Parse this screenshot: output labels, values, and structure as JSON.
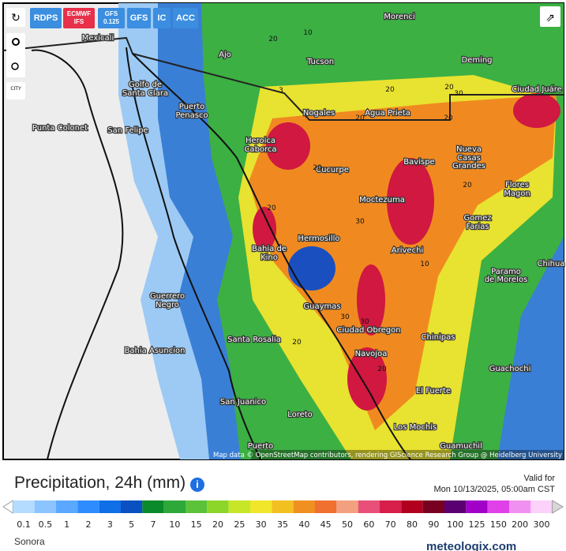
{
  "toolbar": {
    "buttons": [
      "RDPS",
      "ECMWF IFS",
      "GFS 0.125",
      "GFS",
      "IC",
      "ACC"
    ],
    "city_toggle": "CITY"
  },
  "map": {
    "places": [
      "Mexicali",
      "Tucson",
      "Morenci",
      "Ajo",
      "Deming",
      "Ciudad Juáre",
      "Golfo de",
      "Santa Clara",
      "Puerto",
      "Penasco",
      "Punta Colonet",
      "San Felipe",
      "Nogales",
      "Agua Prieta",
      "Heroica",
      "Caborca",
      "Cucurpe",
      "Bavispe",
      "Nueva",
      "Casas",
      "Grandes",
      "Flores",
      "Magon",
      "Moctezuma",
      "Gomez",
      "Farias",
      "Hermosillo",
      "Bahia de",
      "Kino",
      "Arivechi",
      "Paramo",
      "de Morelos",
      "Chihua",
      "Guerrero",
      "Negro",
      "Guaymas",
      "Santa Rosalia",
      "Ciudad Obregon",
      "Chinipas",
      "Bahia Asuncion",
      "Navojoa",
      "Guachochi",
      "El Fuerte",
      "San Juanico",
      "Loreto",
      "Los Mochis",
      "Guamuchil",
      "Puerto"
    ],
    "contour_labels": [
      "20",
      "10",
      "3",
      "20",
      "20",
      "30",
      "20",
      "20",
      "20",
      "20",
      "30",
      "20",
      "10",
      "30",
      "30",
      "20",
      "20"
    ],
    "attribution": "Map data © OpenStreetMap contributors, rendering GIScience Research Group @ Heidelberg University"
  },
  "legend": {
    "title": "Precipitation, 24h (mm)",
    "valid_label": "Valid for",
    "valid_time": "Mon 10/13/2025, 05:00am CST",
    "labels": [
      0.1,
      0.5,
      1,
      2,
      3,
      5,
      7,
      10,
      15,
      20,
      25,
      30,
      35,
      40,
      45,
      50,
      60,
      70,
      80,
      90,
      100,
      125,
      150,
      200,
      300
    ],
    "colors": [
      "#ffffff",
      "#b4dcff",
      "#8cc4ff",
      "#5aa8ff",
      "#2f8cff",
      "#0f6fe6",
      "#0a50c0",
      "#0a8a2a",
      "#2fa83a",
      "#5cc23a",
      "#8cd62a",
      "#c8e628",
      "#f2e62a",
      "#f2c020",
      "#f09020",
      "#f07030",
      "#f2a080",
      "#e8507a",
      "#d81e4a",
      "#b0001e",
      "#780020",
      "#5a0070",
      "#a000c8",
      "#e040e8",
      "#f090f0",
      "#fad2fa",
      "#d8d8d8"
    ]
  },
  "region": "Sonora",
  "brand": "meteologix.com"
}
